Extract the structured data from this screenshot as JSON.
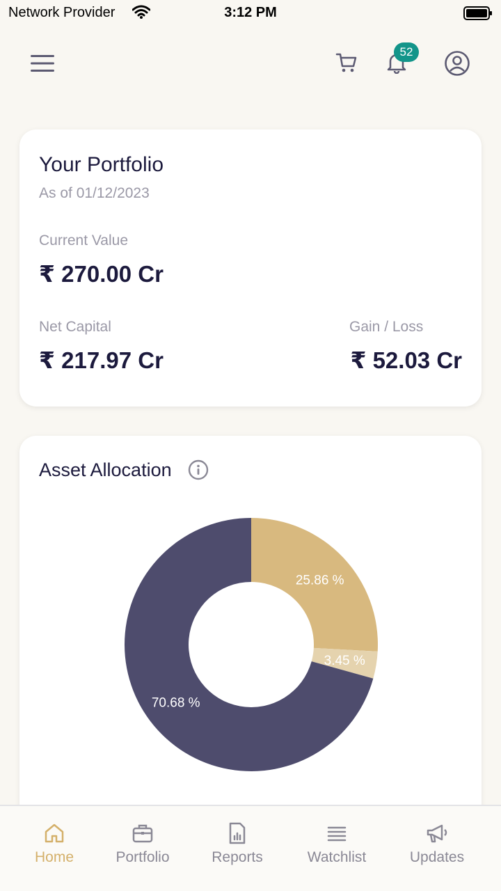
{
  "status_bar": {
    "carrier": "Network Provider",
    "time": "3:12 PM"
  },
  "header": {
    "notification_count": "52",
    "icons": [
      "menu-icon",
      "cart-icon",
      "bell-icon",
      "profile-icon"
    ]
  },
  "portfolio": {
    "title": "Your Portfolio",
    "as_of": "As of 01/12/2023",
    "current_value_label": "Current Value",
    "current_value": "₹ 270.00 Cr",
    "net_capital_label": "Net Capital",
    "net_capital": "₹ 217.97 Cr",
    "gain_loss_label": "Gain / Loss",
    "gain_loss": "₹ 52.03 Cr"
  },
  "allocation": {
    "title": "Asset Allocation"
  },
  "chart_data": {
    "type": "pie",
    "donut": true,
    "values": [
      25.86,
      3.45,
      70.68
    ],
    "labels": [
      "25.86 %",
      "3.45 %",
      "70.68 %"
    ],
    "colors": [
      "#d8b97f",
      "#e5d3ae",
      "#4e4c6d"
    ]
  },
  "bottom_nav": {
    "active": "Home",
    "tabs": [
      {
        "label": "Home",
        "icon": "home-icon"
      },
      {
        "label": "Portfolio",
        "icon": "briefcase-icon"
      },
      {
        "label": "Reports",
        "icon": "report-icon"
      },
      {
        "label": "Watchlist",
        "icon": "list-icon"
      },
      {
        "label": "Updates",
        "icon": "megaphone-icon"
      }
    ]
  },
  "colors": {
    "background": "#f9f7f2",
    "accent": "#d4b06a",
    "badge": "#13958a",
    "text_dark": "#1c1a3d",
    "text_muted": "#9a98a6"
  }
}
